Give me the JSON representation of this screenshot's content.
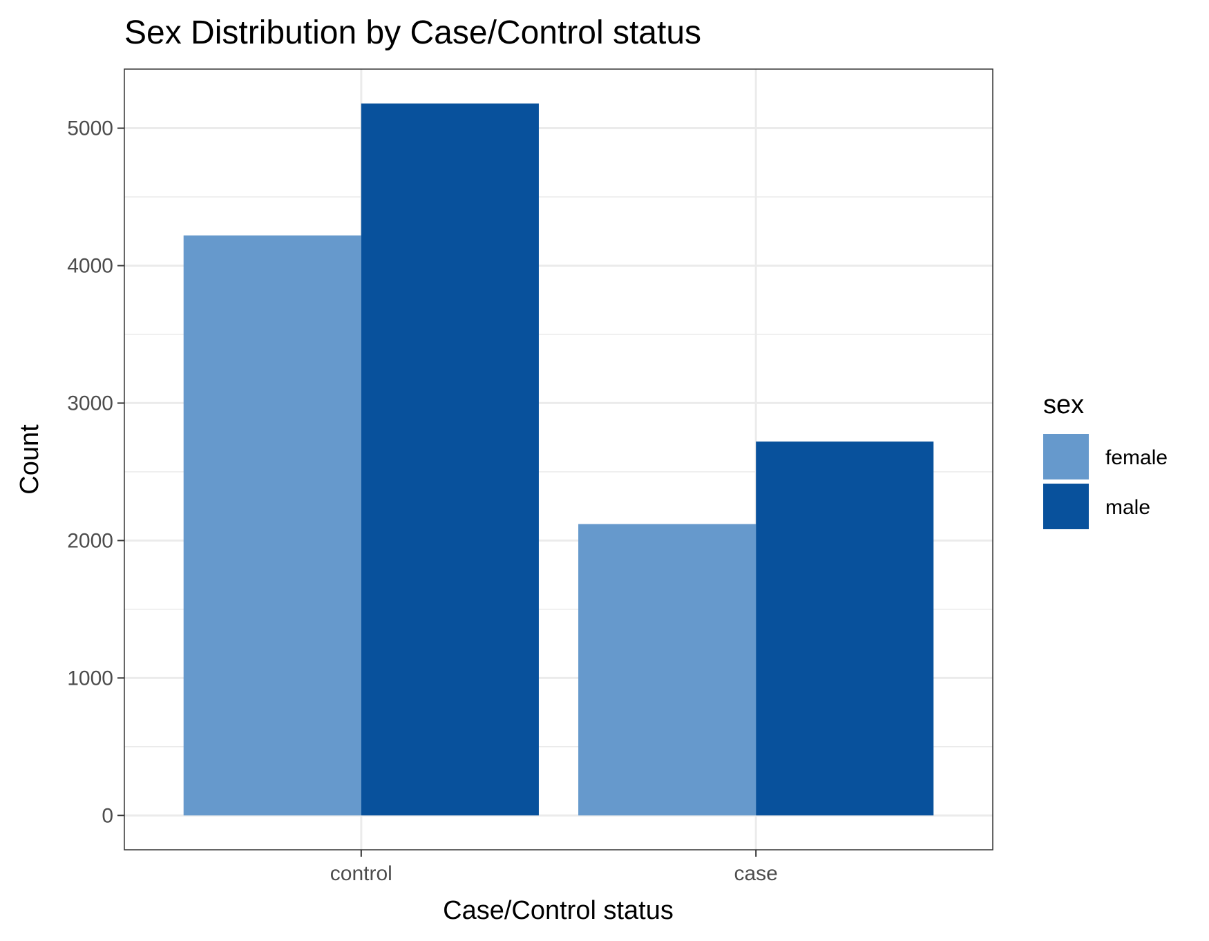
{
  "chart_data": {
    "type": "bar",
    "title": "Sex Distribution by Case/Control status",
    "xlabel": "Case/Control status",
    "ylabel": "Count",
    "categories": [
      "control",
      "case"
    ],
    "series": [
      {
        "name": "female",
        "values": [
          4220,
          2120
        ],
        "color": "#6699CC"
      },
      {
        "name": "male",
        "values": [
          5180,
          2720
        ],
        "color": "#08519C"
      }
    ],
    "ylim": [
      -250,
      5430
    ],
    "yticks": [
      0,
      1000,
      2000,
      3000,
      4000,
      5000
    ],
    "legend": {
      "title": "sex",
      "position": "right"
    },
    "grid": true
  }
}
